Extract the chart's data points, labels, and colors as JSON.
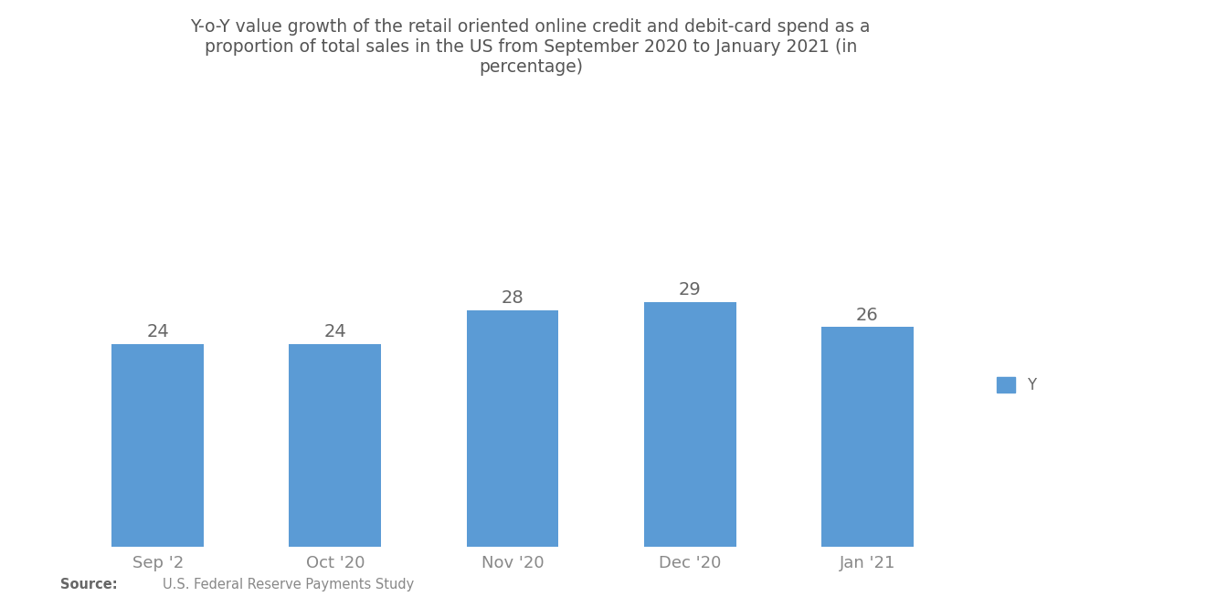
{
  "title": "Y-o-Y value growth of the retail oriented online credit and debit-card spend as a\nproportion of total sales in the US from September 2020 to January 2021 (in\npercentage)",
  "categories": [
    "Sep '2",
    "Oct '20",
    "Nov '20",
    "Dec '20",
    "Jan '21"
  ],
  "values": [
    24,
    24,
    28,
    29,
    26
  ],
  "bar_color": "#5B9BD5",
  "background_color": "#FFFFFF",
  "title_fontsize": 13.5,
  "label_fontsize": 14,
  "tick_fontsize": 13,
  "source_text": "U.S. Federal Reserve Payments Study",
  "source_bold": "Source:",
  "legend_label": "Y",
  "ylim": [
    0,
    36
  ],
  "bar_width": 0.52
}
